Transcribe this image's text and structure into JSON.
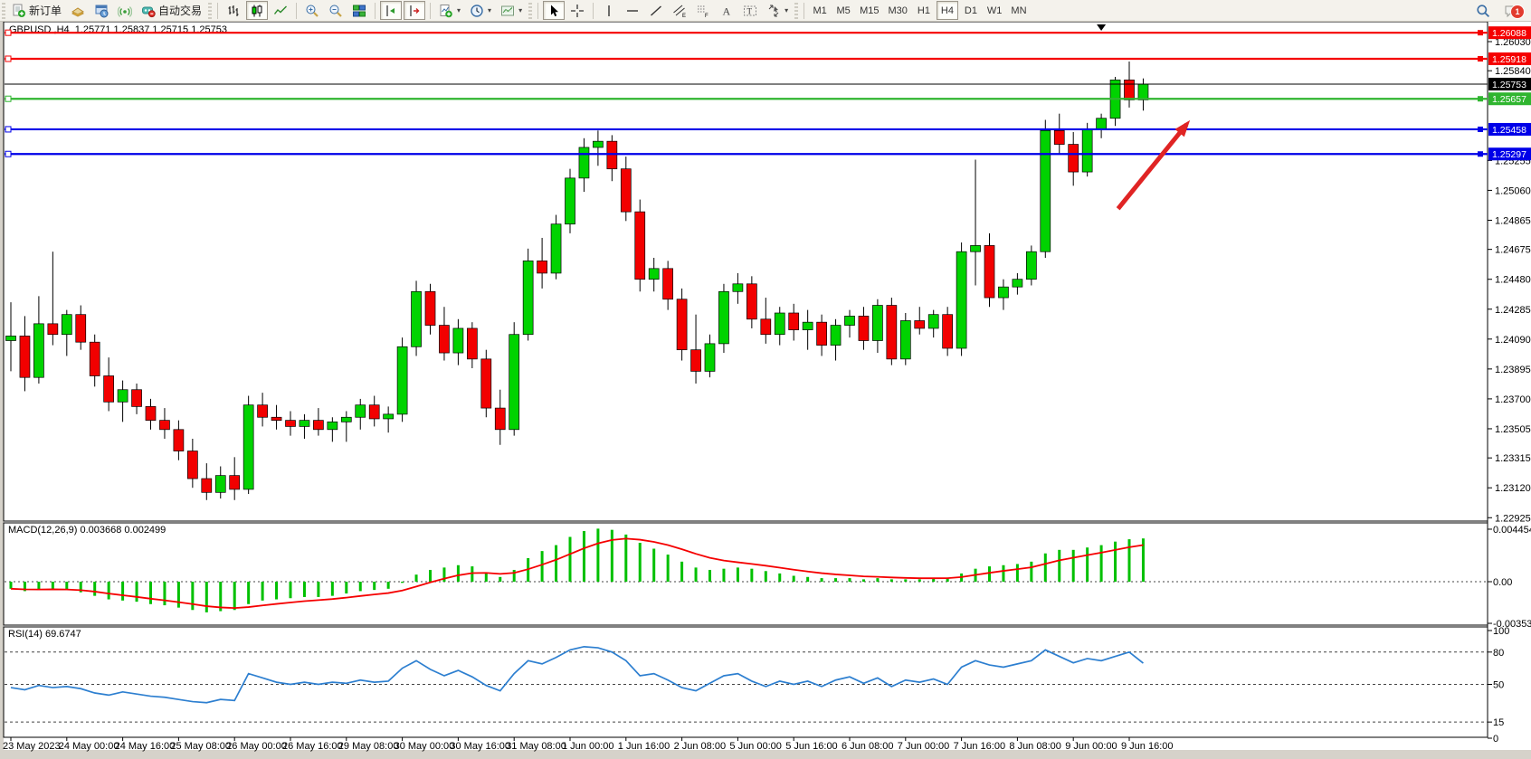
{
  "toolbar": {
    "new_order_label": "新订单",
    "auto_trading_label": "自动交易",
    "timeframes": [
      "M1",
      "M5",
      "M15",
      "M30",
      "H1",
      "H4",
      "D1",
      "W1",
      "MN"
    ],
    "active_timeframe": "H4",
    "notification_badge": "1",
    "icon_names": [
      "new-order",
      "market-watch",
      "data-window",
      "signals",
      "auto-trading",
      "bar-chart",
      "candlestick-chart",
      "line-chart",
      "zoom-in",
      "zoom-out",
      "tile-windows",
      "chart-shift",
      "auto-scroll",
      "add-indicator",
      "periods",
      "templates",
      "cursor",
      "crosshair",
      "vertical-line",
      "horizontal-line",
      "trendline",
      "equidistant-channel",
      "fibonacci-retracement",
      "text",
      "text-label",
      "arrow-objects",
      "search",
      "notifications"
    ]
  },
  "chart": {
    "symbol_title": "GBPUSD ,H4  1.25771 1.25837 1.25715 1.25753",
    "macd_label": "MACD(12,26,9) 0.003668 0.002499",
    "rsi_label": "RSI(14) 69.6747",
    "current_price_tag": "1.25753"
  },
  "chart_data": [
    {
      "type": "candlestick",
      "symbol": "GBPUSD",
      "timeframe": "H4",
      "ohlc_display": {
        "open": "1.25771",
        "high": "1.25837",
        "low": "1.25715",
        "close": "1.25753"
      },
      "ylim": [
        1.2288,
        1.2612
      ],
      "y_ticks": [
        "1.26030",
        "1.25840",
        "1.25255",
        "1.25060",
        "1.24865",
        "1.24675",
        "1.24480",
        "1.24285",
        "1.24090",
        "1.23895",
        "1.23700",
        "1.23505",
        "1.23315",
        "1.23120",
        "1.22925"
      ],
      "hlines": [
        {
          "price": 1.26088,
          "label": "1.26088",
          "color": "#f50000"
        },
        {
          "price": 1.25918,
          "label": "1.25918",
          "color": "#f50000"
        },
        {
          "price": 1.25657,
          "label": "1.25657",
          "color": "#2fb52f"
        },
        {
          "price": 1.25458,
          "label": "1.25458",
          "color": "#0000e8"
        },
        {
          "price": 1.25297,
          "label": "1.25297",
          "color": "#0000e8"
        }
      ],
      "current_price": 1.25753,
      "x_labels": [
        "23 May 2023",
        "24 May 00:00",
        "24 May 16:00",
        "25 May 08:00",
        "26 May 00:00",
        "26 May 16:00",
        "29 May 08:00",
        "30 May 00:00",
        "30 May 16:00",
        "31 May 08:00",
        "1 Jun 00:00",
        "1 Jun 16:00",
        "2 Jun 08:00",
        "5 Jun 00:00",
        "5 Jun 16:00",
        "6 Jun 08:00",
        "7 Jun 00:00",
        "7 Jun 16:00",
        "8 Jun 08:00",
        "9 Jun 00:00",
        "9 Jun 16:00"
      ],
      "candles": [
        [
          1.2408,
          1.2433,
          1.2388,
          1.2411
        ],
        [
          1.2411,
          1.2424,
          1.2375,
          1.2384
        ],
        [
          1.2384,
          1.2437,
          1.238,
          1.2419
        ],
        [
          1.2419,
          1.2466,
          1.2405,
          1.2412
        ],
        [
          1.2412,
          1.2428,
          1.2398,
          1.2425
        ],
        [
          1.2425,
          1.2431,
          1.2402,
          1.2407
        ],
        [
          1.2407,
          1.2412,
          1.2378,
          1.2385
        ],
        [
          1.2385,
          1.2397,
          1.2362,
          1.2368
        ],
        [
          1.2368,
          1.2382,
          1.2355,
          1.2376
        ],
        [
          1.2376,
          1.238,
          1.236,
          1.2365
        ],
        [
          1.2365,
          1.237,
          1.235,
          1.2356
        ],
        [
          1.2356,
          1.2364,
          1.2344,
          1.235
        ],
        [
          1.235,
          1.2356,
          1.233,
          1.2336
        ],
        [
          1.2336,
          1.2344,
          1.2312,
          1.2318
        ],
        [
          1.2318,
          1.2328,
          1.2304,
          1.2309
        ],
        [
          1.2309,
          1.2326,
          1.2305,
          1.232
        ],
        [
          1.232,
          1.2332,
          1.2304,
          1.2311
        ],
        [
          1.2311,
          1.2372,
          1.2308,
          1.2366
        ],
        [
          1.2366,
          1.2374,
          1.2352,
          1.2358
        ],
        [
          1.2358,
          1.2366,
          1.235,
          1.2356
        ],
        [
          1.2356,
          1.2362,
          1.2346,
          1.2352
        ],
        [
          1.2352,
          1.236,
          1.2344,
          1.2356
        ],
        [
          1.2356,
          1.2364,
          1.2346,
          1.235
        ],
        [
          1.235,
          1.2358,
          1.2342,
          1.2355
        ],
        [
          1.2355,
          1.2362,
          1.2342,
          1.2358
        ],
        [
          1.2358,
          1.237,
          1.235,
          1.2366
        ],
        [
          1.2366,
          1.2372,
          1.2352,
          1.2357
        ],
        [
          1.2357,
          1.2365,
          1.2348,
          1.236
        ],
        [
          1.236,
          1.241,
          1.2355,
          1.2404
        ],
        [
          1.2404,
          1.2447,
          1.2398,
          1.244
        ],
        [
          1.244,
          1.2445,
          1.2412,
          1.2418
        ],
        [
          1.2418,
          1.243,
          1.2395,
          1.24
        ],
        [
          1.24,
          1.2422,
          1.2392,
          1.2416
        ],
        [
          1.2416,
          1.242,
          1.239,
          1.2396
        ],
        [
          1.2396,
          1.2402,
          1.2358,
          1.2364
        ],
        [
          1.2364,
          1.2376,
          1.234,
          1.235
        ],
        [
          1.235,
          1.242,
          1.2346,
          1.2412
        ],
        [
          1.2412,
          1.2468,
          1.2408,
          1.246
        ],
        [
          1.246,
          1.2475,
          1.2442,
          1.2452
        ],
        [
          1.2452,
          1.249,
          1.2448,
          1.2484
        ],
        [
          1.2484,
          1.252,
          1.2478,
          1.2514
        ],
        [
          1.2514,
          1.254,
          1.2505,
          1.2534
        ],
        [
          1.2534,
          1.2545,
          1.2522,
          1.2538
        ],
        [
          1.2538,
          1.2542,
          1.2512,
          1.252
        ],
        [
          1.252,
          1.2528,
          1.2486,
          1.2492
        ],
        [
          1.2492,
          1.25,
          1.244,
          1.2448
        ],
        [
          1.2448,
          1.2462,
          1.244,
          1.2455
        ],
        [
          1.2455,
          1.246,
          1.2428,
          1.2435
        ],
        [
          1.2435,
          1.2442,
          1.2395,
          1.2402
        ],
        [
          1.2402,
          1.2425,
          1.238,
          1.2388
        ],
        [
          1.2388,
          1.2412,
          1.2384,
          1.2406
        ],
        [
          1.2406,
          1.2445,
          1.24,
          1.244
        ],
        [
          1.244,
          1.2452,
          1.2432,
          1.2445
        ],
        [
          1.2445,
          1.245,
          1.2416,
          1.2422
        ],
        [
          1.2422,
          1.2436,
          1.2406,
          1.2412
        ],
        [
          1.2412,
          1.243,
          1.2405,
          1.2426
        ],
        [
          1.2426,
          1.2432,
          1.2408,
          1.2415
        ],
        [
          1.2415,
          1.2428,
          1.2402,
          1.242
        ],
        [
          1.242,
          1.2425,
          1.2398,
          1.2405
        ],
        [
          1.2405,
          1.2422,
          1.2395,
          1.2418
        ],
        [
          1.2418,
          1.2428,
          1.241,
          1.2424
        ],
        [
          1.2424,
          1.243,
          1.2402,
          1.2408
        ],
        [
          1.2408,
          1.2435,
          1.24,
          1.2431
        ],
        [
          1.2431,
          1.2436,
          1.2392,
          1.2396
        ],
        [
          1.2396,
          1.2426,
          1.2392,
          1.2421
        ],
        [
          1.2421,
          1.243,
          1.2412,
          1.2416
        ],
        [
          1.2416,
          1.2428,
          1.241,
          1.2425
        ],
        [
          1.2425,
          1.243,
          1.2398,
          1.2403
        ],
        [
          1.2403,
          1.2472,
          1.2398,
          1.2466
        ],
        [
          1.2466,
          1.2526,
          1.2444,
          1.247
        ],
        [
          1.247,
          1.2478,
          1.243,
          1.2436
        ],
        [
          1.2436,
          1.2448,
          1.2428,
          1.2443
        ],
        [
          1.2443,
          1.2452,
          1.2438,
          1.2448
        ],
        [
          1.2448,
          1.247,
          1.2444,
          1.2466
        ],
        [
          1.2466,
          1.2552,
          1.2462,
          1.2545
        ],
        [
          1.2545,
          1.2556,
          1.253,
          1.2536
        ],
        [
          1.2536,
          1.2544,
          1.2509,
          1.2518
        ],
        [
          1.2518,
          1.255,
          1.2515,
          1.2546
        ],
        [
          1.2546,
          1.2556,
          1.254,
          1.2553
        ],
        [
          1.2553,
          1.258,
          1.2548,
          1.2578
        ],
        [
          1.2578,
          1.259,
          1.256,
          1.2565
        ],
        [
          1.2565,
          1.2579,
          1.2558,
          1.25753
        ]
      ],
      "colors": {
        "bull": "#00d300",
        "bear": "#f20000",
        "wick": "#000000",
        "current_line": "#000000"
      },
      "annotations": {
        "arrow": {
          "from_bar": 79.2,
          "from_price": 1.2494,
          "to_bar": 84.1,
          "to_price": 1.2549,
          "color": "#e02424"
        },
        "top_marker_bar": 78.0
      }
    },
    {
      "type": "bar",
      "name": "MACD",
      "params": "12,26,9",
      "main_value": 0.003668,
      "signal_value": 0.002499,
      "y_ticks": [
        "0.004454",
        "0.00",
        "-0.003533"
      ],
      "ylim": [
        -0.0042,
        0.0052
      ],
      "values": [
        -0.0006,
        -0.0008,
        -0.0007,
        -0.0006,
        -0.0007,
        -0.0009,
        -0.0012,
        -0.0015,
        -0.0016,
        -0.0017,
        -0.0019,
        -0.002,
        -0.0022,
        -0.0024,
        -0.0026,
        -0.0025,
        -0.0024,
        -0.0019,
        -0.0016,
        -0.0015,
        -0.0014,
        -0.0013,
        -0.0013,
        -0.0012,
        -0.001,
        -0.0008,
        -0.0007,
        -0.0006,
        -0.0001,
        0.0006,
        0.001,
        0.0012,
        0.0014,
        0.0013,
        0.0008,
        0.0004,
        0.001,
        0.002,
        0.0026,
        0.0031,
        0.0038,
        0.0043,
        0.0045,
        0.0044,
        0.004,
        0.0033,
        0.0028,
        0.0023,
        0.0017,
        0.0012,
        0.001,
        0.0011,
        0.0012,
        0.0011,
        0.0009,
        0.0007,
        0.0005,
        0.0004,
        0.0003,
        0.0003,
        0.0003,
        0.0002,
        0.0003,
        0.0002,
        0.0002,
        0.0002,
        0.0003,
        0.0003,
        0.0007,
        0.0011,
        0.0013,
        0.0014,
        0.0015,
        0.0017,
        0.0024,
        0.0027,
        0.0027,
        0.0029,
        0.0031,
        0.0034,
        0.0036,
        0.003668
      ],
      "colors": {
        "histogram": "#00c000",
        "signal": "#f50000"
      }
    },
    {
      "type": "line",
      "name": "RSI",
      "period": 14,
      "current_value": 69.6747,
      "levels": [
        80,
        50,
        15
      ],
      "y_ticks": [
        "100",
        "80",
        "50",
        "15",
        "0"
      ],
      "ylim": [
        0,
        100
      ],
      "values": [
        47,
        45,
        49,
        47,
        48,
        46,
        42,
        40,
        43,
        41,
        39,
        38,
        36,
        34,
        33,
        36,
        35,
        60,
        56,
        52,
        50,
        52,
        50,
        52,
        51,
        54,
        52,
        53,
        65,
        72,
        64,
        58,
        63,
        57,
        49,
        44,
        60,
        72,
        69,
        75,
        82,
        85,
        84,
        80,
        72,
        58,
        60,
        54,
        47,
        44,
        51,
        58,
        60,
        53,
        48,
        53,
        50,
        53,
        48,
        54,
        57,
        51,
        56,
        48,
        54,
        52,
        55,
        50,
        66,
        72,
        68,
        66,
        69,
        72,
        82,
        76,
        70,
        74,
        72,
        76,
        80,
        69.6747
      ],
      "color": "#2d7fd0"
    }
  ]
}
